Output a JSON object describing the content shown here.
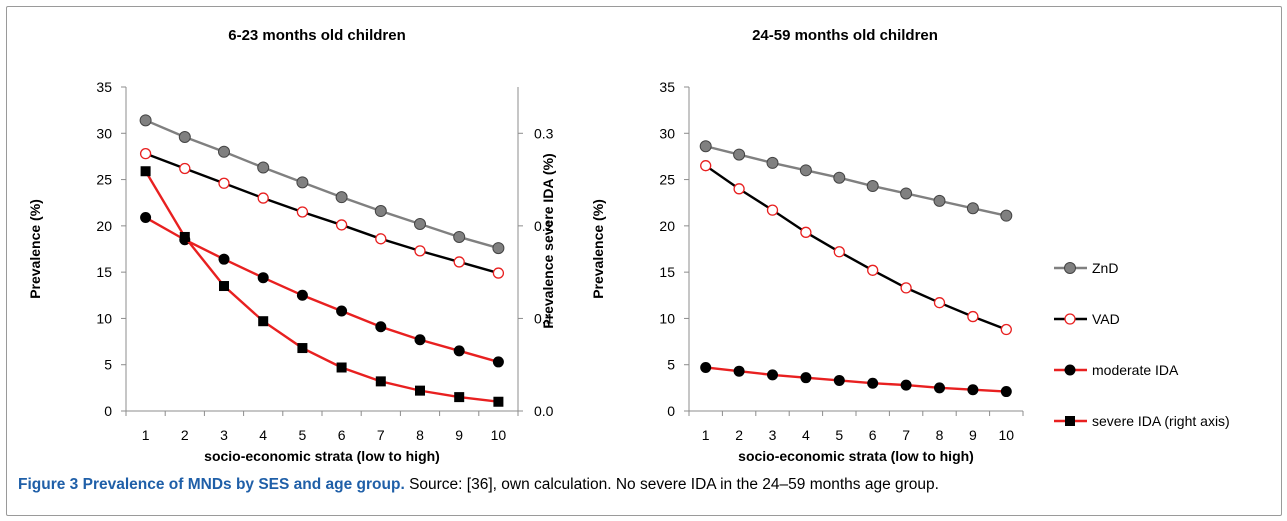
{
  "caption": {
    "label": "Figure 3",
    "title": "Prevalence of MNDs by SES and age group.",
    "text": "Source: [36], own calculation. No severe IDA in the 24–59 months age group."
  },
  "colors": {
    "znd": "#808080",
    "vad": "#e82020",
    "moderate_ida": "#e82020",
    "severe_ida": "#e82020",
    "marker_dark": "#000000",
    "axis": "#8c8c8c"
  },
  "legend": {
    "position": "right",
    "items": [
      "ZnD",
      "VAD",
      "moderate IDA",
      "severe IDA (right axis)"
    ]
  },
  "chart_data": [
    {
      "type": "line",
      "title": "6-23 months old children",
      "xlabel": "socio-economic strata (low to high)",
      "ylabel": "Prevalence (%)",
      "y2label": "Prevalence severe IDA (%)",
      "x": [
        1,
        2,
        3,
        4,
        5,
        6,
        7,
        8,
        9,
        10
      ],
      "ylim": [
        0,
        35
      ],
      "yticks": [
        "0",
        "5",
        "10",
        "15",
        "20",
        "25",
        "30",
        "35"
      ],
      "y2lim": [
        0,
        0.35
      ],
      "y2ticks": [
        "0.0",
        "0.1",
        "0.2",
        "0.3"
      ],
      "grid": false,
      "series": [
        {
          "name": "ZnD",
          "axis": "left",
          "marker": "circle-gray",
          "line": "gray",
          "values": [
            31.4,
            29.6,
            28.0,
            26.3,
            24.7,
            23.1,
            21.6,
            20.2,
            18.8,
            17.6
          ]
        },
        {
          "name": "VAD",
          "axis": "left",
          "marker": "circle-open",
          "line": "black",
          "values": [
            27.8,
            26.2,
            24.6,
            23.0,
            21.5,
            20.1,
            18.6,
            17.3,
            16.1,
            14.9
          ]
        },
        {
          "name": "moderate IDA",
          "axis": "left",
          "marker": "circle-filled",
          "line": "red",
          "values": [
            20.9,
            18.5,
            16.4,
            14.4,
            12.5,
            10.8,
            9.1,
            7.7,
            6.5,
            5.3
          ]
        },
        {
          "name": "severe IDA (right axis)",
          "axis": "right",
          "marker": "square-filled",
          "line": "red",
          "values": [
            0.259,
            0.188,
            0.135,
            0.097,
            0.068,
            0.047,
            0.032,
            0.022,
            0.015,
            0.01
          ]
        }
      ]
    },
    {
      "type": "line",
      "title": "24-59 months old children",
      "xlabel": "socio-economic strata (low to high)",
      "ylabel": "Prevalence (%)",
      "x": [
        1,
        2,
        3,
        4,
        5,
        6,
        7,
        8,
        9,
        10
      ],
      "ylim": [
        0,
        35
      ],
      "yticks": [
        "0",
        "5",
        "10",
        "15",
        "20",
        "25",
        "30",
        "35"
      ],
      "grid": false,
      "series": [
        {
          "name": "ZnD",
          "axis": "left",
          "marker": "circle-gray",
          "line": "gray",
          "values": [
            28.6,
            27.7,
            26.8,
            26.0,
            25.2,
            24.3,
            23.5,
            22.7,
            21.9,
            21.1
          ]
        },
        {
          "name": "VAD",
          "axis": "left",
          "marker": "circle-open",
          "line": "black",
          "values": [
            26.5,
            24.0,
            21.7,
            19.3,
            17.2,
            15.2,
            13.3,
            11.7,
            10.2,
            8.8
          ]
        },
        {
          "name": "moderate IDA",
          "axis": "left",
          "marker": "circle-filled",
          "line": "red",
          "values": [
            4.7,
            4.3,
            3.9,
            3.6,
            3.3,
            3.0,
            2.8,
            2.5,
            2.3,
            2.1
          ]
        }
      ]
    }
  ]
}
